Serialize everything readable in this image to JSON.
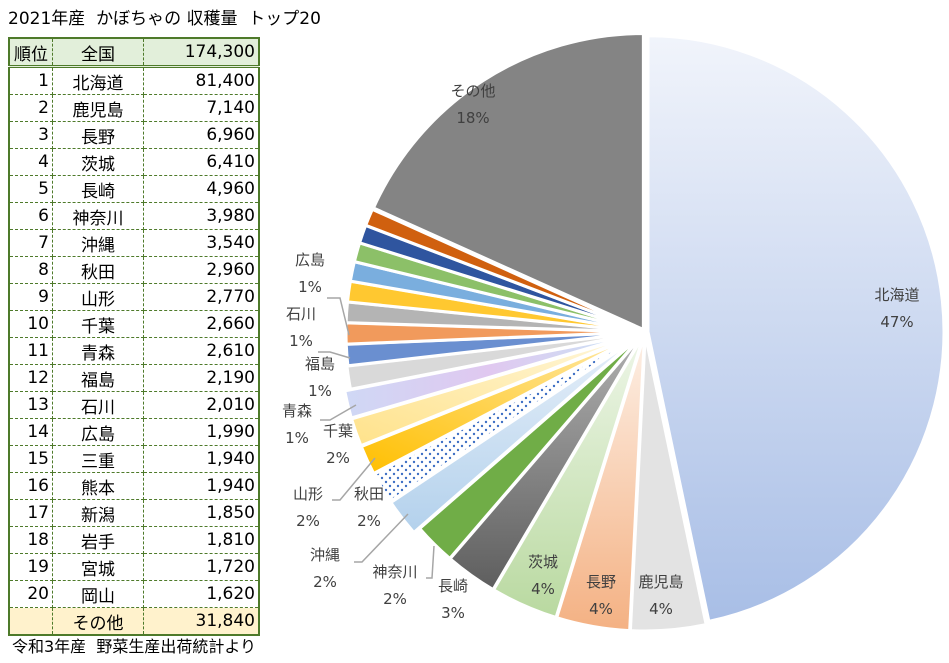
{
  "title": "2021年産  かぼちゃの 収穫量  トップ20",
  "table": {
    "header": {
      "rank": "順位",
      "name": "全国",
      "value": "174,300"
    },
    "rows": [
      {
        "rank": "1",
        "name": "北海道",
        "value": "81,400"
      },
      {
        "rank": "2",
        "name": "鹿児島",
        "value": "7,140"
      },
      {
        "rank": "3",
        "name": "長野",
        "value": "6,960"
      },
      {
        "rank": "4",
        "name": "茨城",
        "value": "6,410"
      },
      {
        "rank": "5",
        "name": "長崎",
        "value": "4,960"
      },
      {
        "rank": "6",
        "name": "神奈川",
        "value": "3,980"
      },
      {
        "rank": "7",
        "name": "沖縄",
        "value": "3,540"
      },
      {
        "rank": "8",
        "name": "秋田",
        "value": "2,960"
      },
      {
        "rank": "9",
        "name": "山形",
        "value": "2,770"
      },
      {
        "rank": "10",
        "name": "千葉",
        "value": "2,660"
      },
      {
        "rank": "11",
        "name": "青森",
        "value": "2,610"
      },
      {
        "rank": "12",
        "name": "福島",
        "value": "2,190"
      },
      {
        "rank": "13",
        "name": "石川",
        "value": "2,010"
      },
      {
        "rank": "14",
        "name": "広島",
        "value": "1,990"
      },
      {
        "rank": "15",
        "name": "三重",
        "value": "1,940"
      },
      {
        "rank": "16",
        "name": "熊本",
        "value": "1,940"
      },
      {
        "rank": "17",
        "name": "新潟",
        "value": "1,850"
      },
      {
        "rank": "18",
        "name": "岩手",
        "value": "1,810"
      },
      {
        "rank": "19",
        "name": "宮城",
        "value": "1,720"
      },
      {
        "rank": "20",
        "name": "岡山",
        "value": "1,620"
      }
    ],
    "other": {
      "rank": "",
      "name": "その他",
      "value": "31,840"
    }
  },
  "source": "令和3年産  野菜生産出荷統計より",
  "chart_data": {
    "type": "pie",
    "title": "2021年産 かぼちゃの 収穫量 トップ20",
    "categories": [
      "北海道",
      "鹿児島",
      "長野",
      "茨城",
      "長崎",
      "神奈川",
      "沖縄",
      "秋田",
      "山形",
      "千葉",
      "青森",
      "福島",
      "石川",
      "広島",
      "三重",
      "熊本",
      "新潟",
      "岩手",
      "宮城",
      "岡山",
      "その他"
    ],
    "values": [
      81400,
      7140,
      6960,
      6410,
      4960,
      3980,
      3540,
      2960,
      2770,
      2660,
      2610,
      2190,
      2010,
      1990,
      1940,
      1940,
      1850,
      1810,
      1720,
      1620,
      31840
    ],
    "colors": [
      "url(#gHok)",
      "#e3e3e3",
      "url(#gNag)",
      "url(#gIba)",
      "url(#gNsk)",
      "#70ad47",
      "url(#gOki)",
      "url(#pDot)",
      "url(#gYam)",
      "url(#gChi)",
      "url(#gAom)",
      "#d9d9d9",
      "#6a8fd0",
      "#f19a5c",
      "#b4b4b4",
      "#ffc830",
      "#7aaede",
      "#8cc068",
      "#2f559f",
      "#d0600f",
      "#848484"
    ],
    "labels": {
      "その他": "18%",
      "北海道": "47%",
      "鹿児島": "4%",
      "長野": "4%",
      "茨城": "4%",
      "長崎": "3%",
      "神奈川": "2%",
      "沖縄": "2%",
      "秋田": "2%",
      "山形": "2%",
      "千葉": "2%",
      "青森": "1%",
      "福島": "1%",
      "石川": "1%",
      "広島": "1%"
    }
  }
}
